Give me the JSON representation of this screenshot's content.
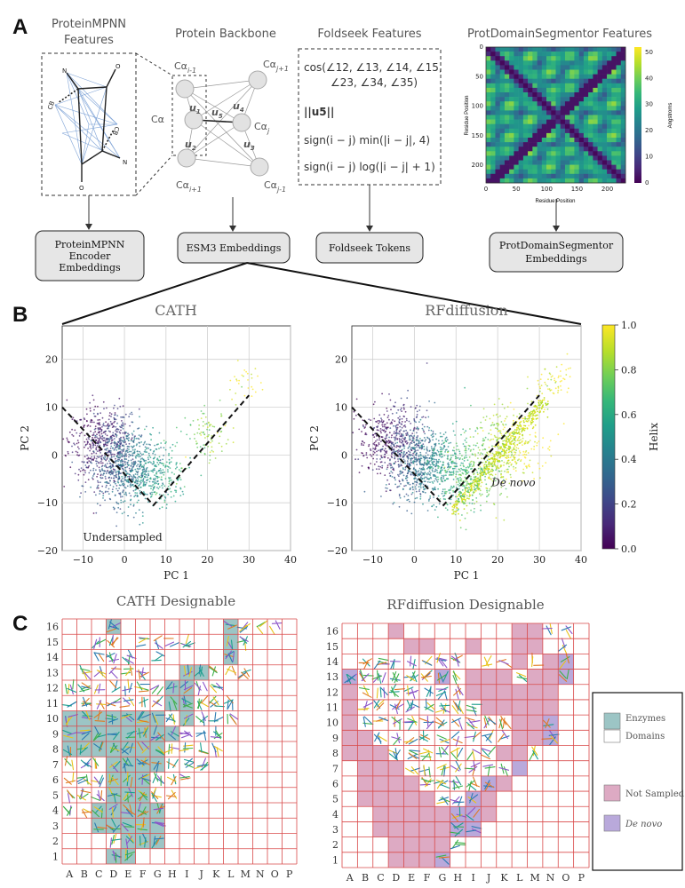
{
  "panel_a": {
    "letter": "A",
    "proteinmpnn": {
      "title_line1": "ProteinMPNN",
      "title_line2": "Features",
      "atom_n1": "N",
      "atom_o1": "O",
      "atom_cb1": "CB",
      "atom_cb2": "CB",
      "atom_n2": "N",
      "atom_o2": "O",
      "output_line1": "ProteinMPNN",
      "output_line2": "Encoder",
      "output_line3": "Embeddings"
    },
    "backbone": {
      "title": "Protein Backbone",
      "ca_i_minus_1": "Cα",
      "ca_i_minus_1_sub": "i-1",
      "ca": "Cα",
      "ca_i_plus_1": "Cα",
      "ca_i_plus_1_sub": "i+1",
      "ca_j_plus_1": "Cα",
      "ca_j_plus_1_sub": "j+1",
      "ca_j": "Cα",
      "ca_j_sub": "j",
      "ca_j_minus_1": "Cα",
      "ca_j_minus_1_sub": "j-1",
      "u1": "u",
      "u1_sub": "1",
      "u2": "u",
      "u2_sub": "2",
      "u3": "u",
      "u3_sub": "3",
      "u4": "u",
      "u4_sub": "4",
      "u5": "u",
      "u5_sub": "5",
      "output": "ESM3 Embeddings"
    },
    "foldseek": {
      "title": "Foldseek Features",
      "formula_1": "cos(∠12, ∠13, ∠14, ∠15,",
      "formula_2": "∠23, ∠34, ∠35)",
      "formula_3": "||u5||",
      "formula_4": "sign(i − j) min(|i − j|, 4)",
      "formula_5": "sign(i − j) log(|i − j| + 1)",
      "output": "Foldseek Tokens"
    },
    "protdomain": {
      "title": "ProtDomainSegmentor Features",
      "ylabel": "Residue Position",
      "xlabel": "Residue Position",
      "xticks": [
        "0",
        "50",
        "100",
        "150",
        "200"
      ],
      "yticks": [
        "0",
        "50",
        "100",
        "150",
        "200"
      ],
      "colorbar_label": "Angstroms",
      "colorbar_ticks": [
        "50",
        "40",
        "30",
        "20",
        "10",
        "0"
      ],
      "output_line1": "ProtDomainSegmentor",
      "output_line2": "Embeddings"
    }
  },
  "panel_b": {
    "letter": "B",
    "colorbar_label": "Helix",
    "colorbar_ticks": [
      "1.0",
      "0.8",
      "0.6",
      "0.4",
      "0.2",
      "0.0"
    ],
    "colormap": [
      "#440154",
      "#482878",
      "#3e4989",
      "#31688e",
      "#26828e",
      "#1f9e89",
      "#35b779",
      "#6ece58",
      "#b5de2b",
      "#fde725"
    ]
  },
  "chart_data": [
    {
      "type": "scatter",
      "title": "CATH",
      "xlabel": "PC 1",
      "ylabel": "PC 2",
      "xlim": [
        -15,
        40
      ],
      "ylim": [
        -20,
        27
      ],
      "xticks": [
        "−10",
        "0",
        "10",
        "20",
        "30",
        "40"
      ],
      "yticks": [
        "20",
        "10",
        "0",
        "−10",
        "−20"
      ],
      "color_variable": "Helix",
      "annotation": "Undersampled",
      "boundary_lines": [
        [
          -15,
          10
        ],
        [
          7,
          -10.5
        ],
        [
          30,
          12.5
        ]
      ],
      "point_clusters": [
        {
          "cx": -5,
          "cy": 3,
          "helix": 0.1,
          "count": 500
        },
        {
          "cx": 0,
          "cy": -3,
          "helix": 0.35,
          "count": 600
        },
        {
          "cx": 7,
          "cy": -4,
          "helix": 0.55,
          "count": 280
        },
        {
          "cx": 20,
          "cy": 4,
          "helix": 0.8,
          "count": 90
        },
        {
          "cx": 29,
          "cy": 15,
          "helix": 0.97,
          "count": 30
        }
      ]
    },
    {
      "type": "scatter",
      "title": "RFdiffusion",
      "xlabel": "PC 1",
      "ylabel": "PC 2",
      "xlim": [
        -15,
        40
      ],
      "ylim": [
        -20,
        27
      ],
      "xticks": [
        "−10",
        "0",
        "10",
        "20",
        "30",
        "40"
      ],
      "yticks": [
        "20",
        "10",
        "0",
        "−10",
        "−20"
      ],
      "color_variable": "Helix",
      "annotation": "De novo",
      "boundary_lines": [
        [
          -15,
          10
        ],
        [
          7,
          -10.5
        ],
        [
          30,
          12.5
        ]
      ],
      "point_clusters": [
        {
          "cx": -5,
          "cy": 3,
          "helix": 0.1,
          "count": 500
        },
        {
          "cx": 2,
          "cy": -2,
          "helix": 0.4,
          "count": 600
        },
        {
          "cx": 12,
          "cy": -4,
          "helix": 0.7,
          "count": 400
        },
        {
          "cx": 22,
          "cy": 2,
          "helix": 0.9,
          "count": 400
        },
        {
          "cx": 33,
          "cy": 15,
          "helix": 0.98,
          "count": 60
        }
      ]
    },
    {
      "type": "heatmap",
      "title": "CATH Designable",
      "columns": [
        "A",
        "B",
        "C",
        "D",
        "E",
        "F",
        "G",
        "H",
        "I",
        "J",
        "K",
        "L",
        "M",
        "N",
        "O",
        "P"
      ],
      "rows": [
        "16",
        "15",
        "14",
        "13",
        "12",
        "11",
        "10",
        "9",
        "8",
        "7",
        "6",
        "5",
        "4",
        "3",
        "2",
        "1"
      ],
      "enzyme_cells": [
        "D16",
        "L16",
        "L15",
        "L14",
        "I13",
        "J13",
        "H12",
        "I12",
        "H11",
        "I11",
        "A10",
        "B10",
        "C10",
        "D10",
        "E10",
        "F10",
        "G10",
        "I10",
        "A9",
        "B9",
        "C9",
        "D9",
        "E9",
        "F9",
        "G9",
        "H9",
        "A8",
        "B8",
        "C8",
        "D8",
        "E8",
        "F8",
        "G8",
        "D7",
        "E7",
        "F7",
        "G7",
        "D6",
        "E6",
        "F6",
        "D5",
        "E5",
        "F5",
        "C4",
        "D4",
        "E4",
        "F4",
        "G4",
        "C3",
        "D3",
        "E3",
        "F3",
        "G3",
        "E2",
        "F2",
        "G2",
        "D1",
        "E1"
      ],
      "structure_cells": [
        "D16",
        "L16",
        "M16",
        "N16",
        "O16",
        "C15",
        "D15",
        "F15",
        "G15",
        "H15",
        "I15",
        "L15",
        "M15",
        "C14",
        "D14",
        "E14",
        "G14",
        "L14",
        "B13",
        "C13",
        "D13",
        "E13",
        "F13",
        "I13",
        "J13",
        "K13",
        "L13",
        "M13",
        "A12",
        "B12",
        "C12",
        "D12",
        "E12",
        "F12",
        "G12",
        "H12",
        "I12",
        "J12",
        "K12",
        "A11",
        "B11",
        "C11",
        "D11",
        "E11",
        "F11",
        "G11",
        "H11",
        "I11",
        "J11",
        "K11",
        "L11",
        "A10",
        "B10",
        "C10",
        "D10",
        "E10",
        "F10",
        "G10",
        "H10",
        "I10",
        "J10",
        "K10",
        "L10",
        "A9",
        "B9",
        "C9",
        "D9",
        "E9",
        "F9",
        "G9",
        "H9",
        "I9",
        "J9",
        "K9",
        "A8",
        "B8",
        "C8",
        "D8",
        "E8",
        "F8",
        "G8",
        "H8",
        "I8",
        "J8",
        "K8",
        "A7",
        "B7",
        "C7",
        "D7",
        "E7",
        "F7",
        "G7",
        "H7",
        "I7",
        "J7",
        "A6",
        "B6",
        "C6",
        "D6",
        "E6",
        "F6",
        "G6",
        "H6",
        "I6",
        "A5",
        "B5",
        "C5",
        "D5",
        "E5",
        "F5",
        "G5",
        "H5",
        "A4",
        "B4",
        "C4",
        "D4",
        "E4",
        "F4",
        "G4",
        "C3",
        "D3",
        "E3",
        "F3",
        "G3",
        "D2",
        "E2",
        "F2",
        "G2",
        "D1",
        "E1"
      ]
    },
    {
      "type": "heatmap",
      "title": "RFdiffusion Designable",
      "columns": [
        "A",
        "B",
        "C",
        "D",
        "E",
        "F",
        "G",
        "H",
        "I",
        "J",
        "K",
        "L",
        "M",
        "N",
        "O",
        "P"
      ],
      "rows": [
        "16",
        "15",
        "14",
        "13",
        "12",
        "11",
        "10",
        "9",
        "8",
        "7",
        "6",
        "5",
        "4",
        "3",
        "2",
        "1"
      ],
      "not_sampled_cells": [
        "D16",
        "L16",
        "M16",
        "E15",
        "F15",
        "I15",
        "L15",
        "M15",
        "L14",
        "N14",
        "I13",
        "J13",
        "K13",
        "M13",
        "N13",
        "A12",
        "I12",
        "J12",
        "K12",
        "L12",
        "M12",
        "N12",
        "A11",
        "J11",
        "K11",
        "L11",
        "M11",
        "N11",
        "A10",
        "L10",
        "M10",
        "A9",
        "B9",
        "L9",
        "M9",
        "A8",
        "B8",
        "C8",
        "K8",
        "L8",
        "B7",
        "C7",
        "D7",
        "L7",
        "B6",
        "C6",
        "D6",
        "E6",
        "K6",
        "B5",
        "C5",
        "D5",
        "E5",
        "F5",
        "J5",
        "C4",
        "D4",
        "E4",
        "F4",
        "G4",
        "J4",
        "C3",
        "D3",
        "E3",
        "F3",
        "G3",
        "D2",
        "E2",
        "F2",
        "G2",
        "D1",
        "E1",
        "F1",
        "G1"
      ],
      "de_novo_cells": [
        "O14",
        "A13",
        "G13",
        "O13",
        "N10",
        "N9",
        "L7",
        "J6",
        "I5",
        "H4",
        "I4",
        "H3",
        "I3",
        "G1"
      ],
      "structure_cells": [
        "N16",
        "O16",
        "O15",
        "B14",
        "C14",
        "D14",
        "E14",
        "F14",
        "G14",
        "H14",
        "J14",
        "K14",
        "M14",
        "O14",
        "A13",
        "B13",
        "C13",
        "D13",
        "E13",
        "F13",
        "G13",
        "H13",
        "L13",
        "O13",
        "B12",
        "C12",
        "D12",
        "E12",
        "F12",
        "G12",
        "H12",
        "B11",
        "C11",
        "D11",
        "E11",
        "F11",
        "G11",
        "H11",
        "I11",
        "B10",
        "C10",
        "D10",
        "E10",
        "F10",
        "G10",
        "H10",
        "I10",
        "J10",
        "K10",
        "N10",
        "C9",
        "D9",
        "E9",
        "F9",
        "G9",
        "H9",
        "I9",
        "J9",
        "K9",
        "N9",
        "D8",
        "E8",
        "F8",
        "G8",
        "H8",
        "I8",
        "J8",
        "M8",
        "E7",
        "F7",
        "G7",
        "H7",
        "I7",
        "J7",
        "K7",
        "F6",
        "G6",
        "H6",
        "I6",
        "J6",
        "G5",
        "H5",
        "I5",
        "H4",
        "I4",
        "H3",
        "I3",
        "H2",
        "G1"
      ]
    }
  ],
  "panel_c": {
    "letter": "C",
    "legend": {
      "enzymes_label": "Enzymes",
      "domains_label": "Domains",
      "not_sampled_label": "Not Sampled",
      "de_novo_label": "De novo",
      "enzyme_color": "#9cc5c5",
      "not_sampled_color": "#ddaac3",
      "de_novo_color": "#b9a9db"
    },
    "grid_line_color": "#d94a4a"
  }
}
